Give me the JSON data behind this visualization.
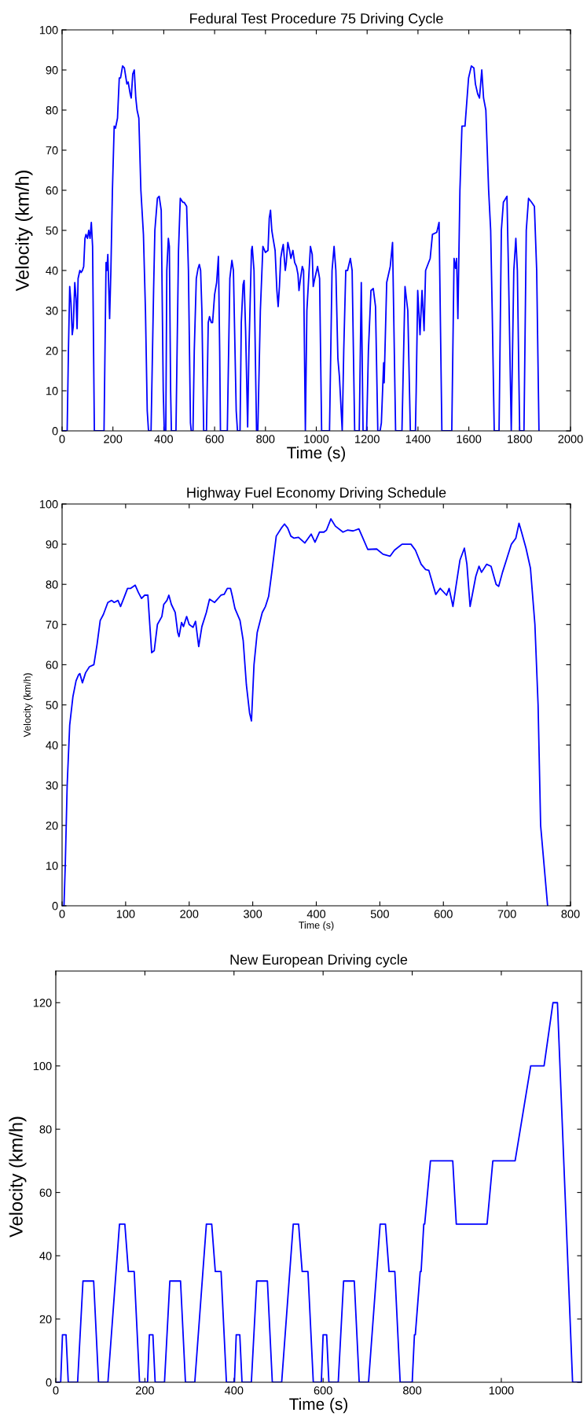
{
  "chart_data": [
    {
      "type": "line",
      "title": "Fedural Test Procedure 75 Driving Cycle",
      "xlabel": "Time (s)",
      "ylabel": "Velocity (km/h)",
      "color": "#0000ff",
      "xlim": [
        0,
        2000
      ],
      "ylim": [
        0,
        100
      ],
      "xticks": [
        0,
        200,
        400,
        600,
        800,
        1000,
        1200,
        1400,
        1600,
        1800,
        2000
      ],
      "yticks": [
        0,
        10,
        20,
        30,
        40,
        50,
        60,
        70,
        80,
        90,
        100
      ],
      "x": [
        0,
        20,
        25,
        30,
        35,
        40,
        44,
        50,
        55,
        59,
        63,
        70,
        75,
        80,
        85,
        90,
        94,
        100,
        105,
        110,
        115,
        120,
        127,
        165,
        173,
        176,
        180,
        187,
        192,
        198,
        205,
        210,
        218,
        225,
        230,
        238,
        245,
        255,
        260,
        268,
        272,
        278,
        284,
        290,
        295,
        302,
        310,
        320,
        328,
        335,
        340,
        350,
        360,
        365,
        375,
        382,
        390,
        398,
        402,
        408,
        412,
        418,
        422,
        427,
        430,
        448,
        458,
        465,
        475,
        480,
        490,
        497,
        505,
        508,
        515,
        520,
        528,
        535,
        540,
        545,
        550,
        557,
        568,
        575,
        580,
        587,
        592,
        600,
        608,
        615,
        620,
        623,
        650,
        660,
        668,
        674,
        685,
        690,
        700,
        705,
        712,
        716,
        722,
        730,
        735,
        745,
        748,
        755,
        765,
        770,
        780,
        790,
        800,
        810,
        815,
        820,
        825,
        830,
        838,
        845,
        850,
        855,
        860,
        865,
        870,
        878,
        882,
        888,
        895,
        900,
        908,
        915,
        922,
        928,
        932,
        938,
        945,
        950,
        957,
        963,
        977,
        984,
        988,
        994,
        1005,
        1013,
        1021,
        1052,
        1062,
        1070,
        1077,
        1085,
        1091,
        1102,
        1108,
        1116,
        1123,
        1134,
        1141,
        1151,
        1169,
        1177,
        1184,
        1198,
        1205,
        1215,
        1224,
        1233,
        1242,
        1251,
        1256,
        1265,
        1267,
        1277,
        1291,
        1300,
        1312,
        1337,
        1349,
        1360,
        1370,
        1390,
        1393,
        1399,
        1408,
        1416,
        1424,
        1430,
        1448,
        1457,
        1474,
        1483,
        1494,
        1533,
        1542,
        1548,
        1552,
        1557,
        1565,
        1573,
        1585,
        1599,
        1610,
        1620,
        1626,
        1635,
        1642,
        1651,
        1658,
        1667,
        1678,
        1686,
        1692,
        1700,
        1719,
        1728,
        1736,
        1750,
        1756,
        1767,
        1777,
        1785,
        1791,
        1800,
        1817,
        1826,
        1835,
        1847,
        1858,
        1867,
        1876
      ],
      "values": [
        0,
        0,
        20,
        36,
        32,
        24,
        26,
        37,
        33,
        25.5,
        38,
        40,
        39.5,
        40,
        41,
        48,
        49,
        48,
        50,
        48,
        52,
        46,
        0,
        0,
        42,
        40,
        44,
        28,
        40,
        60,
        76,
        75.5,
        78,
        88,
        88,
        91,
        90.5,
        86.5,
        87,
        84,
        83,
        89,
        90,
        83,
        80,
        78,
        60,
        49,
        30,
        5,
        0,
        0,
        35,
        50,
        58,
        58.5,
        55,
        10,
        0,
        0,
        40,
        48,
        46,
        10,
        0,
        0,
        45,
        58,
        57,
        57,
        56,
        40,
        2,
        0,
        0,
        20,
        38,
        40.5,
        41.5,
        40,
        30,
        0,
        0,
        27,
        28.5,
        27,
        27,
        34,
        37,
        43.5,
        20,
        0,
        0,
        38,
        42.5,
        40,
        5,
        0,
        0,
        27,
        36.5,
        37.5,
        25,
        1,
        20,
        45,
        46,
        40,
        0,
        0,
        30,
        46,
        44.5,
        45,
        53,
        55,
        50,
        48,
        45,
        35,
        31,
        36,
        43,
        45,
        46.5,
        40,
        42,
        47,
        45,
        43,
        45,
        42,
        41,
        39,
        35,
        38,
        41,
        40,
        0,
        30,
        46,
        44,
        36,
        38,
        41,
        38,
        0,
        0,
        40,
        46,
        40,
        18,
        13.5,
        0,
        20,
        40,
        40,
        43,
        40,
        0,
        0,
        37,
        0,
        0,
        20,
        35,
        35.5,
        31,
        0,
        0,
        2,
        17,
        12,
        37,
        41,
        47,
        0,
        0,
        36,
        30,
        0,
        0,
        10,
        35,
        24,
        35,
        25,
        40,
        43,
        49,
        49.5,
        52,
        0,
        0,
        43,
        40.5,
        43,
        28,
        60,
        76,
        76,
        88,
        91,
        90.5,
        86.5,
        84,
        83,
        90,
        83,
        80,
        60,
        50,
        30,
        0,
        0,
        50,
        57,
        58.5,
        40,
        0,
        40,
        48,
        40,
        0,
        0,
        50,
        58,
        57,
        56,
        40,
        0
      ]
    },
    {
      "type": "line",
      "title": "Highway Fuel Economy Driving Schedule",
      "xlabel": "Time (s)",
      "ylabel": "Velocity (km/h)",
      "color": "#0000ff",
      "xlim": [
        0,
        800
      ],
      "ylim": [
        0,
        100
      ],
      "xticks": [
        0,
        100,
        200,
        300,
        400,
        500,
        600,
        700,
        800
      ],
      "yticks": [
        0,
        10,
        20,
        30,
        40,
        50,
        60,
        70,
        80,
        90,
        100
      ],
      "x": [
        0,
        3,
        5,
        8,
        12,
        17,
        22,
        26,
        28,
        32,
        37,
        43,
        50,
        55,
        60,
        65,
        72,
        78,
        82,
        88,
        92,
        97,
        103,
        108,
        115,
        120,
        125,
        130,
        135,
        138,
        141,
        145,
        150,
        157,
        160,
        165,
        168,
        172,
        178,
        182,
        184,
        188,
        191,
        196,
        200,
        206,
        210,
        215,
        220,
        227,
        232,
        240,
        250,
        255,
        260,
        265,
        268,
        272,
        280,
        285,
        290,
        295,
        298,
        302,
        307,
        315,
        320,
        325,
        330,
        337,
        345,
        350,
        355,
        360,
        365,
        372,
        382,
        392,
        398,
        405,
        412,
        416,
        423,
        430,
        442,
        449,
        458,
        467,
        472,
        481,
        495,
        505,
        516,
        523,
        535,
        549,
        556,
        565,
        572,
        577,
        588,
        595,
        605,
        609,
        615,
        626,
        633,
        637,
        642,
        651,
        656,
        660,
        668,
        675,
        683,
        687,
        693,
        700,
        707,
        714,
        719,
        723,
        730,
        737,
        744,
        749,
        753,
        764
      ],
      "values": [
        0,
        0,
        10,
        30,
        45,
        52,
        56,
        57.5,
        57.8,
        55.5,
        58,
        59.5,
        60,
        65,
        71,
        72.5,
        75.5,
        76,
        75.5,
        76,
        74.5,
        76.5,
        79,
        79,
        79.8,
        78,
        76.5,
        77.3,
        77.3,
        70,
        63,
        63.5,
        70,
        72,
        75,
        76,
        77.3,
        75,
        73,
        68,
        67,
        70.5,
        69.5,
        72,
        70,
        69.3,
        70.8,
        64.5,
        69.5,
        73,
        76.3,
        75.5,
        77.3,
        77.5,
        79,
        79,
        77,
        74,
        71,
        66,
        55,
        48,
        46,
        60,
        68,
        73,
        74.5,
        77,
        83,
        92,
        94,
        95,
        94,
        92,
        91.5,
        91.7,
        90.3,
        92.5,
        90.5,
        93,
        93,
        93.5,
        96.3,
        94.5,
        93,
        93.5,
        93.3,
        93.8,
        92,
        88.7,
        88.8,
        87.5,
        87,
        88.5,
        90,
        90,
        88.5,
        85,
        83.7,
        83.5,
        77.5,
        79,
        77.3,
        79,
        74.5,
        86,
        89,
        85,
        74.5,
        82,
        84.5,
        83,
        85,
        84.5,
        80,
        79.5,
        83,
        86.5,
        90,
        91.5,
        95.2,
        93,
        89,
        84,
        70,
        50,
        20,
        0
      ]
    },
    {
      "type": "line",
      "title": "New European Driving cycle",
      "xlabel": "Time (s)",
      "ylabel": "Velocity (km/h)",
      "color": "#0000ff",
      "xlim": [
        0,
        1180
      ],
      "ylim": [
        0,
        130
      ],
      "xticks": [
        0,
        200,
        400,
        600,
        800,
        1000
      ],
      "yticks": [
        0,
        20,
        40,
        60,
        80,
        100,
        120
      ],
      "x": [
        0,
        11,
        15,
        23,
        28,
        49,
        61,
        85,
        96,
        117,
        143,
        155,
        163,
        176,
        188,
        206,
        210,
        218,
        223,
        244,
        256,
        280,
        291,
        312,
        338,
        350,
        358,
        371,
        383,
        401,
        405,
        413,
        418,
        439,
        451,
        475,
        486,
        507,
        533,
        545,
        553,
        566,
        578,
        596,
        600,
        608,
        613,
        634,
        646,
        670,
        681,
        702,
        728,
        740,
        748,
        761,
        773,
        800,
        805,
        807,
        818,
        820,
        826,
        828,
        841,
        891,
        899,
        968,
        981,
        1031,
        1066,
        1096,
        1116,
        1126,
        1160,
        1180
      ],
      "values": [
        0,
        0,
        15,
        15,
        0,
        0,
        32,
        32,
        0,
        0,
        50,
        50,
        35,
        35,
        0,
        0,
        15,
        15,
        0,
        0,
        32,
        32,
        0,
        0,
        50,
        50,
        35,
        35,
        0,
        0,
        15,
        15,
        0,
        0,
        32,
        32,
        0,
        0,
        50,
        50,
        35,
        35,
        0,
        0,
        15,
        15,
        0,
        0,
        32,
        32,
        0,
        0,
        50,
        50,
        35,
        35,
        0,
        0,
        15,
        15,
        35,
        35,
        50,
        50,
        70,
        70,
        50,
        50,
        70,
        70,
        100,
        100,
        120,
        120,
        0,
        0
      ]
    }
  ]
}
